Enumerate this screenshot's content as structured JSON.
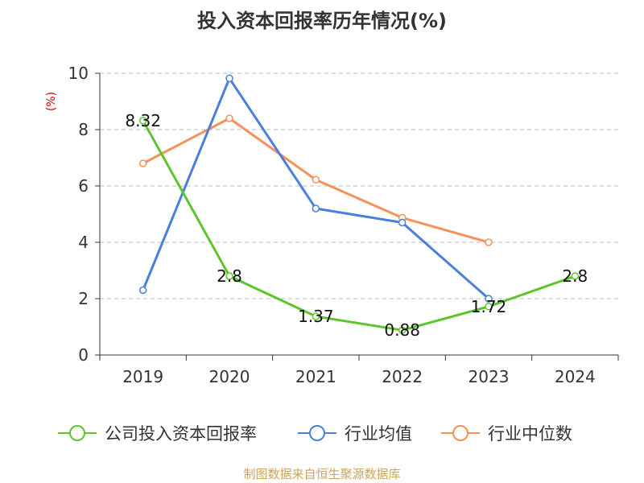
{
  "title": "投入资本回报率历年情况(%)",
  "source_note": "制图数据来自恒生聚源数据库",
  "colors": {
    "company": "#5cc52b",
    "industry_avg": "#4a7fdb",
    "industry_median": "#f5925a",
    "axis": "#333333",
    "grid": "#bbbbbb",
    "unit": "#d00000"
  },
  "chart_data": {
    "type": "line",
    "title": "投入资本回报率历年情况(%)",
    "ylabel": "(%)",
    "categories": [
      "2019",
      "2020",
      "2021",
      "2022",
      "2023",
      "2024"
    ],
    "ylim": [
      0,
      10
    ],
    "yticks": [
      "0",
      "2",
      "4",
      "6",
      "8",
      "10"
    ],
    "grid": "horizontal dashed",
    "legend_position": "bottom",
    "series": [
      {
        "name": "公司投入资本回报率",
        "color_key": "company",
        "values": [
          8.32,
          2.8,
          1.37,
          0.88,
          1.72,
          2.8
        ],
        "labels": [
          "8.32",
          "2.8",
          "1.37",
          "0.88",
          "1.72",
          "2.8"
        ]
      },
      {
        "name": "行业均值",
        "color_key": "industry_avg",
        "values": [
          2.3,
          9.82,
          5.2,
          4.7,
          2.0,
          null
        ]
      },
      {
        "name": "行业中位数",
        "color_key": "industry_median",
        "values": [
          6.8,
          8.4,
          6.22,
          4.87,
          4.0,
          null
        ]
      }
    ]
  }
}
